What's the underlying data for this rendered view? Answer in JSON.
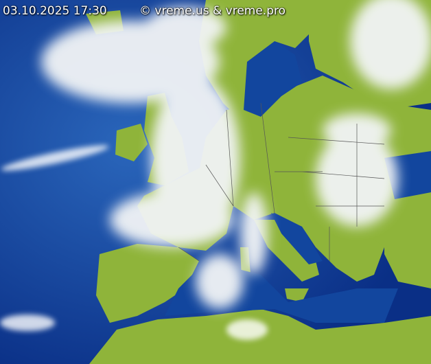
{
  "timestamp": "03.10.2025 17:30",
  "copyright": "© vreme.us & vreme.pro",
  "colors": {
    "ocean": "#0b3e9a",
    "ocean_light": "#2f6fc0",
    "land": "#8fb43a",
    "cloud": "#f2f4f6",
    "border": "#555555"
  }
}
